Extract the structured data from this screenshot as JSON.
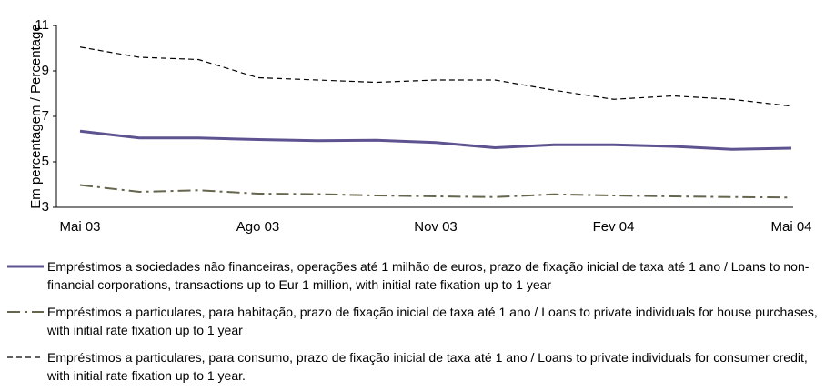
{
  "chart_data": {
    "type": "line",
    "y_label": "Em percentagem / Percentage",
    "categories": [
      "Mai 03",
      null,
      null,
      "Ago 03",
      null,
      null,
      "Nov 03",
      null,
      null,
      "Fev 04",
      null,
      null,
      "Mai 04"
    ],
    "ylim": [
      3,
      11
    ],
    "yticks": [
      3,
      5,
      7,
      9,
      11
    ],
    "grid": false,
    "series": [
      {
        "name": "Empréstimos a sociedades não financeiras, operações até 1 milhão de euros, prazo de fixação inicial de taxa até 1 ano / Loans to non-financial corporations, transactions up to Eur 1 million, with initial rate fixation up to 1 year",
        "color": "#5e5390",
        "linestyle": "solid",
        "values": [
          6.35,
          6.05,
          6.05,
          5.98,
          5.93,
          5.95,
          5.85,
          5.62,
          5.75,
          5.75,
          5.68,
          5.55,
          5.6
        ]
      },
      {
        "name": "Empréstimos a particulares, para habitação, prazo de fixação inicial de taxa  até 1 ano / Loans to private individuals for house purchases, with initial rate fixation up to 1 year",
        "color": "#66664f",
        "linestyle": "dashdot",
        "values": [
          3.98,
          3.68,
          3.75,
          3.6,
          3.58,
          3.52,
          3.48,
          3.45,
          3.57,
          3.52,
          3.48,
          3.45,
          3.43
        ]
      },
      {
        "name": "Empréstimos a particulares, para consumo, prazo de fixação inicial de taxa até 1 ano / Loans to private individuals for consumer credit, with initial rate fixation up to 1 year.",
        "color": "#000000",
        "linestyle": "dashed",
        "values": [
          10.05,
          9.6,
          9.5,
          8.7,
          8.6,
          8.5,
          8.6,
          8.6,
          8.15,
          7.75,
          7.9,
          7.75,
          7.45
        ]
      }
    ]
  }
}
